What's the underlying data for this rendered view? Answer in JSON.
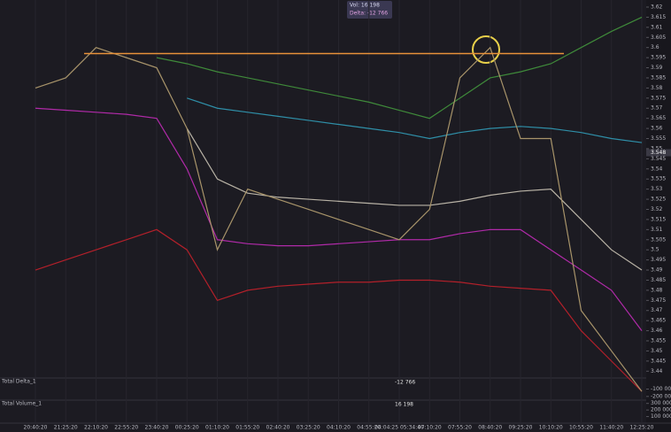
{
  "chart_data": {
    "type": "line",
    "categories": [
      "20:40:20",
      "21:25:20",
      "22:10:20",
      "22:55:20",
      "23:40:20",
      "00:25:20",
      "01:10:20",
      "01:55:20",
      "02:40:20",
      "03:25:20",
      "04:10:20",
      "04:55:20",
      "04:04:25 05:34:40",
      "07:10:20",
      "07:55:20",
      "08:40:20",
      "09:25:20",
      "10:10:20",
      "10:55:20",
      "11:40:20",
      "12:25:20"
    ],
    "series": [
      {
        "color": "#3f8a3a",
        "values": [
          null,
          null,
          null,
          null,
          3.595,
          3.592,
          3.588,
          3.585,
          3.582,
          3.579,
          3.576,
          3.573,
          3.569,
          3.565,
          3.575,
          3.585,
          3.588,
          3.592,
          3.6,
          3.608,
          3.615
        ]
      },
      {
        "color": "#2f8fa8",
        "values": [
          null,
          null,
          null,
          null,
          null,
          3.575,
          3.57,
          3.568,
          3.566,
          3.564,
          3.562,
          3.56,
          3.558,
          3.555,
          3.558,
          3.56,
          3.561,
          3.56,
          3.558,
          3.555,
          3.553
        ]
      },
      {
        "color": "#b9b3a6",
        "values": [
          null,
          null,
          null,
          null,
          null,
          3.56,
          3.535,
          3.528,
          3.526,
          3.525,
          3.524,
          3.523,
          3.522,
          3.522,
          3.524,
          3.527,
          3.529,
          3.53,
          3.515,
          3.5,
          3.49
        ]
      },
      {
        "color": "#b02aa8",
        "values": [
          3.57,
          3.569,
          3.568,
          3.567,
          3.565,
          3.54,
          3.505,
          3.503,
          3.502,
          3.502,
          3.503,
          3.504,
          3.505,
          3.505,
          3.508,
          3.51,
          3.51,
          3.5,
          3.49,
          3.48,
          3.46
        ]
      },
      {
        "color": "#b3202a",
        "values": [
          3.49,
          3.495,
          3.5,
          3.505,
          3.51,
          3.5,
          3.475,
          3.48,
          3.482,
          3.483,
          3.484,
          3.484,
          3.485,
          3.485,
          3.484,
          3.482,
          3.481,
          3.48,
          3.46,
          3.445,
          3.43
        ]
      },
      {
        "color": "#a8946a",
        "values": [
          3.58,
          3.585,
          3.6,
          3.595,
          3.59,
          3.56,
          3.5,
          3.53,
          3.525,
          3.52,
          3.515,
          3.51,
          3.505,
          3.52,
          3.585,
          3.6,
          3.555,
          3.555,
          3.47,
          3.45,
          3.43
        ]
      }
    ],
    "hline": {
      "value": 3.597,
      "color": "#e8923a"
    },
    "last_price": 3.548,
    "ylim": [
      3.4375,
      3.6235
    ],
    "yticks": [
      3.62,
      3.615,
      3.61,
      3.605,
      3.6,
      3.595,
      3.59,
      3.585,
      3.58,
      3.575,
      3.57,
      3.565,
      3.56,
      3.555,
      3.55,
      3.545,
      3.54,
      3.535,
      3.53,
      3.525,
      3.52,
      3.515,
      3.51,
      3.505,
      3.5,
      3.495,
      3.49,
      3.485,
      3.48,
      3.475,
      3.47,
      3.465,
      3.46,
      3.455,
      3.45,
      3.445,
      3.44
    ],
    "info_box": [
      "Vol: 16 198",
      "Delta: -12 766"
    ],
    "panels": [
      {
        "label": "Total Delta_1",
        "value_text": "-12 766",
        "ylim": [
          -250000,
          50000
        ],
        "yticks": [
          {
            "value": -100000,
            "label": "-100 000"
          },
          {
            "value": -200000,
            "label": "-200 000"
          }
        ]
      },
      {
        "label": "Total Volume_1",
        "value_text": "16 198",
        "ylim": [
          0,
          350000
        ],
        "yticks": [
          {
            "value": 300000,
            "label": "300 000"
          },
          {
            "value": 200000,
            "label": "200 000"
          },
          {
            "value": 100000,
            "label": "100 000"
          }
        ]
      }
    ]
  }
}
